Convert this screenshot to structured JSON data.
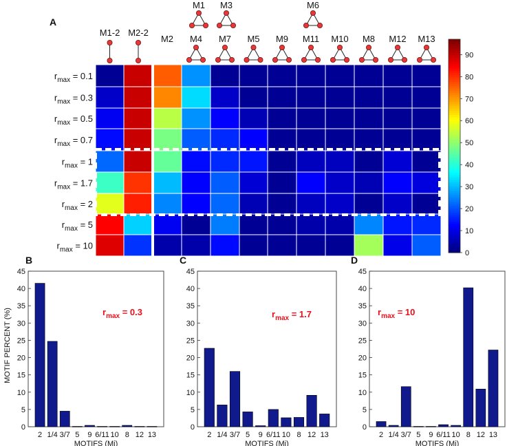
{
  "figure": {
    "panel_labels": {
      "A": "A",
      "B": "B",
      "C": "C",
      "D": "D"
    },
    "colors": {
      "bar": "#101a8c",
      "annotation": "#e8101a",
      "grid": "#ffffff",
      "dash": "#ffffff"
    }
  },
  "heatmap_header": {
    "top_row": [
      "M1",
      "M3",
      "M6"
    ],
    "columns": [
      "M1-2",
      "M2-2",
      "M2",
      "M4",
      "M7",
      "M5",
      "M9",
      "M11",
      "M10",
      "M8",
      "M12",
      "M13"
    ]
  },
  "row_label_prefix": "r",
  "row_label_sub": "max",
  "chart_data": [
    {
      "id": "A",
      "type": "heatmap",
      "rows": [
        "0.1",
        "0.3",
        "0.5",
        "0.7",
        "1",
        "1.7",
        "2",
        "5",
        "10"
      ],
      "columns": [
        "M1-2",
        "M2-2",
        "M2",
        "M4",
        "M7",
        "M5",
        "M9",
        "M11",
        "M10",
        "M8",
        "M12",
        "M13"
      ],
      "values": [
        [
          2,
          90,
          76,
          26,
          2,
          2,
          2,
          2,
          2,
          2,
          2,
          2
        ],
        [
          7,
          90,
          72,
          33,
          7,
          2,
          2,
          2,
          2,
          2,
          2,
          2
        ],
        [
          11,
          90,
          54,
          26,
          12,
          5,
          2,
          2,
          2,
          2,
          2,
          2
        ],
        [
          13,
          90,
          48,
          21,
          16,
          12,
          2,
          2,
          2,
          2,
          2,
          2
        ],
        [
          22,
          90,
          46,
          13,
          16,
          14,
          2,
          6,
          6,
          2,
          8,
          2
        ],
        [
          42,
          80,
          30,
          12,
          21,
          8,
          2,
          12,
          7,
          5,
          12,
          9
        ],
        [
          58,
          82,
          25,
          12,
          22,
          5,
          2,
          6,
          7,
          2,
          7,
          2
        ],
        [
          85,
          32,
          11,
          2,
          24,
          2,
          2,
          4,
          4,
          25,
          14,
          16
        ],
        [
          88,
          17,
          4,
          4,
          13,
          2,
          2,
          2,
          2,
          52,
          10,
          21
        ]
      ],
      "colorbar": {
        "min": 0,
        "max": 97,
        "ticks": [
          0,
          10,
          20,
          30,
          40,
          50,
          60,
          70,
          80,
          90
        ]
      },
      "dashed_box_rows": [
        "1",
        "2"
      ]
    },
    {
      "id": "B",
      "type": "bar",
      "categories": [
        "2",
        "1/4",
        "3/7",
        "5",
        "9",
        "6/11",
        "10",
        "8",
        "12",
        "13"
      ],
      "values": [
        41.5,
        24.7,
        4.5,
        0.1,
        0.4,
        0.1,
        0.1,
        0.4,
        0.1,
        0.1
      ],
      "ylim": [
        0,
        45
      ],
      "yticks": [
        0,
        5,
        10,
        15,
        20,
        25,
        30,
        35,
        40,
        45
      ],
      "xlabel": "MOTIFS (Mi)",
      "ylabel": "MOTIF PERCENT (%)",
      "annotation": {
        "prefix": "r",
        "sub": "max",
        "value": " = 0.3"
      }
    },
    {
      "id": "C",
      "type": "bar",
      "categories": [
        "2",
        "1/4",
        "3/7",
        "5",
        "9",
        "6/11",
        "10",
        "8",
        "12",
        "13"
      ],
      "values": [
        22.7,
        6.3,
        16.0,
        4.3,
        0.3,
        5.0,
        2.6,
        2.7,
        9.1,
        3.7
      ],
      "ylim": [
        0,
        45
      ],
      "yticks": [
        0,
        5,
        10,
        15,
        20,
        25,
        30,
        35,
        40,
        45
      ],
      "xlabel": "MOTIFS (Mi)",
      "annotation": {
        "prefix": "r",
        "sub": "max",
        "value": " = 1.7"
      }
    },
    {
      "id": "D",
      "type": "bar",
      "categories": [
        "2",
        "1/4",
        "3/7",
        "5",
        "9",
        "6/11",
        "10",
        "8",
        "12",
        "13"
      ],
      "values": [
        1.5,
        0.4,
        11.6,
        0.1,
        0.1,
        0.6,
        0.4,
        40.2,
        10.9,
        22.2
      ],
      "ylim": [
        0,
        45
      ],
      "yticks": [
        0,
        5,
        10,
        15,
        20,
        25,
        30,
        35,
        40,
        45
      ],
      "xlabel": "MOTIFS (Mi)",
      "annotation": {
        "prefix": "r",
        "sub": "max",
        "value": " = 10"
      }
    }
  ]
}
